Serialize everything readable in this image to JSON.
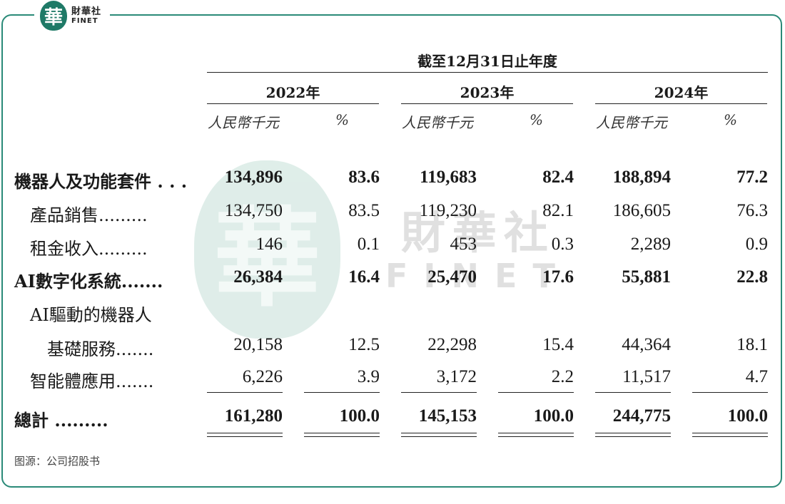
{
  "logo": {
    "mark": "華",
    "cn": "財華社",
    "en": "FINET"
  },
  "watermark": {
    "mark": "華",
    "cn": "財華社",
    "en": "FINET"
  },
  "table": {
    "period_header": "截至12月31日止年度",
    "years": [
      "2022年",
      "2023年",
      "2024年"
    ],
    "unit_label": "人民幣千元",
    "pct_label": "%",
    "rows": [
      {
        "label": "機器人及功能套件 . . .",
        "bold": true,
        "values": [
          "134,896",
          "83.6",
          "119,683",
          "82.4",
          "188,894",
          "77.2"
        ]
      },
      {
        "label": "產品銷售.........",
        "bold": false,
        "values": [
          "134,750",
          "83.5",
          "119,230",
          "82.1",
          "186,605",
          "76.3"
        ]
      },
      {
        "label": "租金收入.........",
        "bold": false,
        "values": [
          "146",
          "0.1",
          "453",
          "0.3",
          "2,289",
          "0.9"
        ]
      },
      {
        "label": "AI數字化系統.......",
        "bold": true,
        "values": [
          "26,384",
          "16.4",
          "25,470",
          "17.6",
          "55,881",
          "22.8"
        ]
      },
      {
        "label": "AI驅動的機器人",
        "bold": false,
        "values": [
          "",
          "",
          "",
          "",
          "",
          ""
        ]
      },
      {
        "label": "基礎服務.......",
        "bold": false,
        "values": [
          "20,158",
          "12.5",
          "22,298",
          "15.4",
          "44,364",
          "18.1"
        ]
      },
      {
        "label": "智能體應用.......",
        "bold": false,
        "values": [
          "6,226",
          "3.9",
          "3,172",
          "2.2",
          "11,517",
          "4.7"
        ]
      },
      {
        "label": "總計 .........",
        "bold": true,
        "values": [
          "161,280",
          "100.0",
          "145,153",
          "100.0",
          "244,775",
          "100.0"
        ]
      }
    ]
  },
  "source": "图源：公司招股书"
}
